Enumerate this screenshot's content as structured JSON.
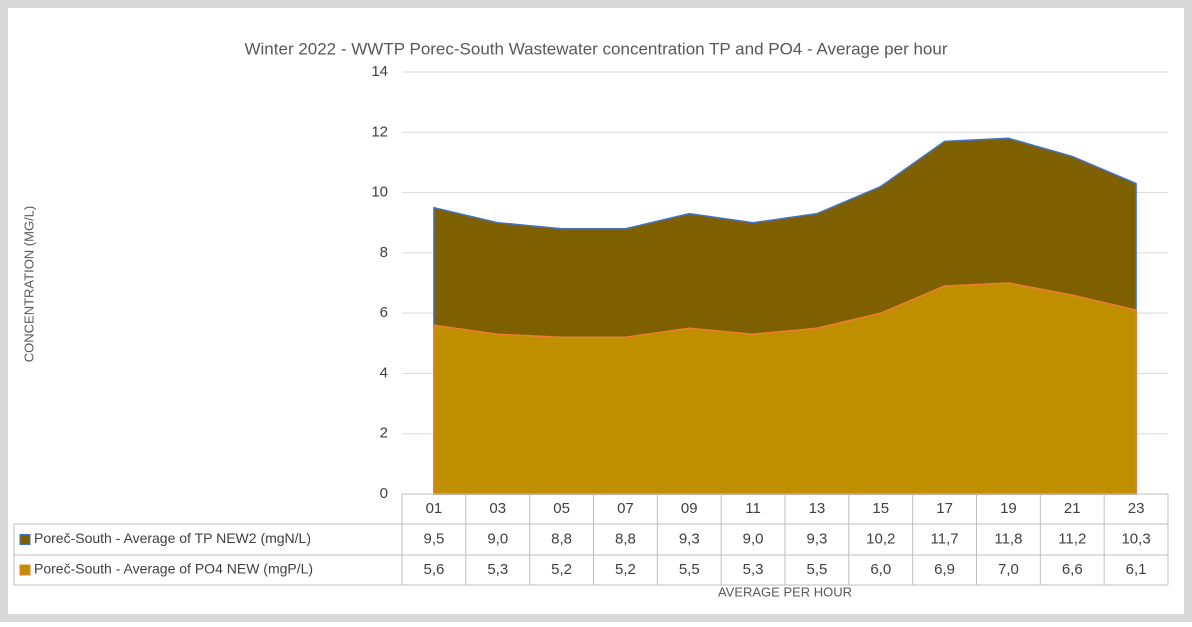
{
  "chart_data": {
    "type": "area",
    "title": "Winter 2022 - WWTP Porec-South Wastewater concentration TP and PO4 - Average per hour",
    "x_label": "AVERAGE PER HOUR",
    "y_label": "CONCENTRATION (MG/L)",
    "categories": [
      "01",
      "03",
      "05",
      "07",
      "09",
      "11",
      "13",
      "15",
      "17",
      "19",
      "21",
      "23"
    ],
    "series": [
      {
        "name": "Poreč-South - Average of TP NEW2 (mgN/L)",
        "color": "#7f6000",
        "line_color": "#4472c4",
        "values": [
          9.5,
          9.0,
          8.8,
          8.8,
          9.3,
          9.0,
          9.3,
          10.2,
          11.7,
          11.8,
          11.2,
          10.3
        ],
        "value_labels": [
          "9,5",
          "9,0",
          "8,8",
          "8,8",
          "9,3",
          "9,0",
          "9,3",
          "10,2",
          "11,7",
          "11,8",
          "11,2",
          "10,3"
        ]
      },
      {
        "name": "Poreč-South - Average of PO4 NEW (mgP/L)",
        "color": "#bf8f00",
        "line_color": "#ed7d31",
        "values": [
          5.6,
          5.3,
          5.2,
          5.2,
          5.5,
          5.3,
          5.5,
          6.0,
          6.9,
          7.0,
          6.6,
          6.1
        ],
        "value_labels": [
          "5,6",
          "5,3",
          "5,2",
          "5,2",
          "5,5",
          "5,3",
          "5,5",
          "6,0",
          "6,9",
          "7,0",
          "6,6",
          "6,1"
        ]
      }
    ],
    "ylim": [
      0,
      14
    ],
    "yticks": [
      0,
      2,
      4,
      6,
      8,
      10,
      12,
      14
    ],
    "grid": true
  }
}
